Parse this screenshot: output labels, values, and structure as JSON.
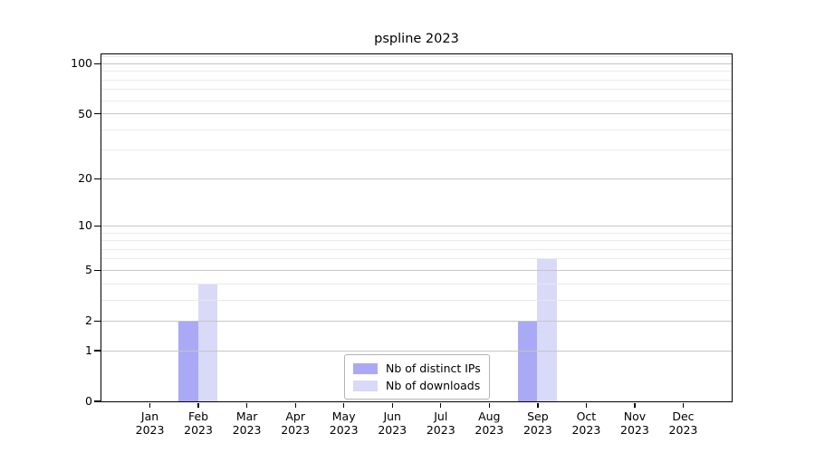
{
  "chart_data": {
    "type": "bar",
    "title": "pspline 2023",
    "categories": [
      "Jan",
      "Feb",
      "Mar",
      "Apr",
      "May",
      "Jun",
      "Jul",
      "Aug",
      "Sep",
      "Oct",
      "Nov",
      "Dec"
    ],
    "year_label": "2023",
    "series": [
      {
        "name": "Nb of distinct IPs",
        "key": "distinct-ips",
        "color": "#a9a9f5",
        "values": [
          0,
          2,
          0,
          0,
          0,
          0,
          0,
          0,
          2,
          0,
          0,
          0
        ]
      },
      {
        "name": "Nb of downloads",
        "key": "downloads",
        "color": "#d9d9f8",
        "values": [
          0,
          4,
          0,
          0,
          0,
          0,
          0,
          0,
          6,
          0,
          0,
          0
        ]
      }
    ],
    "y_axis": {
      "scale": "log1p",
      "ymin": 0,
      "ymax": 113.8,
      "tick_labels": [
        0,
        1,
        2,
        5,
        10,
        20,
        50,
        100
      ],
      "major_gridlines": [
        1,
        2,
        5,
        10,
        20,
        50,
        100
      ],
      "minor_gridlines": [
        3,
        4,
        6,
        7,
        8,
        9,
        30,
        40,
        60,
        70,
        80,
        90,
        110
      ]
    },
    "grid": "horizontal",
    "legend_position": "bottom-center"
  }
}
